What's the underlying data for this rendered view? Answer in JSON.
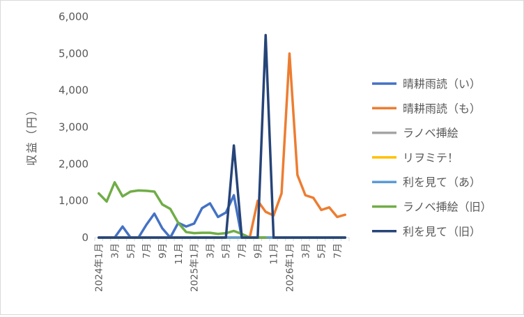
{
  "chart_data": {
    "type": "line",
    "title": "",
    "ylabel": "収益（円）",
    "xlabel": "",
    "ylim": [
      0,
      6000
    ],
    "yticks": [
      "0",
      "1,000",
      "2,000",
      "3,000",
      "4,000",
      "5,000",
      "6,000"
    ],
    "ytick_values": [
      0,
      1000,
      2000,
      3000,
      4000,
      5000,
      6000
    ],
    "gridlines": false,
    "legend_position": "right",
    "x": [
      "2024-01",
      "2024-02",
      "2024-03",
      "2024-04",
      "2024-05",
      "2024-06",
      "2024-07",
      "2024-08",
      "2024-09",
      "2024-10",
      "2024-11",
      "2024-12",
      "2025-01",
      "2025-02",
      "2025-03",
      "2025-04",
      "2025-05",
      "2025-06",
      "2025-07",
      "2025-08",
      "2025-09",
      "2025-10",
      "2025-11",
      "2025-12",
      "2026-01",
      "2026-02",
      "2026-03",
      "2026-04",
      "2026-05",
      "2026-06",
      "2026-07",
      "2026-08"
    ],
    "xtick_labels": [
      "2024年1月",
      "",
      "3月",
      "",
      "5月",
      "",
      "7月",
      "",
      "9月",
      "",
      "11月",
      "",
      "2025年1月",
      "",
      "3月",
      "",
      "5月",
      "",
      "7月",
      "",
      "9月",
      "",
      "11月",
      "",
      "2026年1月",
      "",
      "3月",
      "",
      "5月",
      "",
      "7月",
      ""
    ],
    "series": [
      {
        "name": "晴耕雨読（い）",
        "color": "#4472c4",
        "values": [
          0,
          0,
          0,
          300,
          0,
          0,
          350,
          650,
          250,
          0,
          400,
          300,
          380,
          800,
          930,
          560,
          680,
          1150,
          0,
          0,
          0,
          0,
          0,
          0,
          0,
          0,
          0,
          0,
          0,
          0,
          0,
          0
        ]
      },
      {
        "name": "晴耕雨読（も）",
        "color": "#ed7d31",
        "values": [
          0,
          0,
          0,
          0,
          0,
          0,
          0,
          0,
          0,
          0,
          0,
          0,
          0,
          0,
          0,
          0,
          0,
          0,
          0,
          0,
          1000,
          700,
          600,
          1200,
          5000,
          1700,
          1150,
          1080,
          750,
          820,
          560,
          620
        ]
      },
      {
        "name": "ラノベ挿絵",
        "color": "#a5a5a5",
        "values": [
          0,
          0,
          0,
          0,
          0,
          0,
          0,
          0,
          0,
          0,
          0,
          0,
          0,
          0,
          0,
          0,
          0,
          0,
          0,
          0,
          0,
          0,
          0,
          0,
          0,
          0,
          0,
          0,
          0,
          0,
          0,
          0
        ]
      },
      {
        "name": "リヲミテ！",
        "color": "#ffc000",
        "values": [
          0,
          0,
          0,
          0,
          0,
          0,
          0,
          0,
          0,
          0,
          0,
          0,
          0,
          0,
          0,
          0,
          0,
          0,
          0,
          0,
          0,
          0,
          0,
          0,
          0,
          0,
          0,
          0,
          0,
          0,
          0,
          0
        ]
      },
      {
        "name": "利を見て（あ）",
        "color": "#5b9bd5",
        "values": [
          0,
          0,
          0,
          0,
          0,
          0,
          0,
          0,
          0,
          0,
          0,
          0,
          0,
          0,
          0,
          0,
          0,
          0,
          0,
          0,
          0,
          0,
          0,
          0,
          0,
          0,
          0,
          0,
          0,
          0,
          0,
          0
        ]
      },
      {
        "name": "ラノベ挿絵（旧）",
        "color": "#70ad47",
        "values": [
          1200,
          980,
          1500,
          1120,
          1250,
          1280,
          1270,
          1250,
          900,
          780,
          400,
          150,
          120,
          130,
          130,
          100,
          120,
          180,
          100,
          0,
          0,
          0,
          null,
          null,
          null,
          null,
          null,
          null,
          null,
          null,
          null,
          null
        ]
      },
      {
        "name": "利を見て（旧）",
        "color": "#264478",
        "values": [
          0,
          0,
          0,
          0,
          0,
          0,
          0,
          0,
          0,
          0,
          0,
          0,
          0,
          0,
          0,
          0,
          0,
          2500,
          0,
          0,
          0,
          5500,
          0,
          0,
          0,
          0,
          0,
          0,
          0,
          0,
          0,
          0
        ]
      }
    ]
  }
}
